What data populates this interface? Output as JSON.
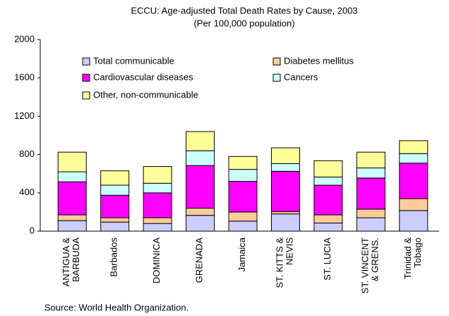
{
  "chart_data": {
    "type": "stacked_bar",
    "title": "ECCU: Age-adjusted Total Death Rates by Cause, 2003",
    "subtitle": "(Per 100,000 population)",
    "source": "Source: World Health Organization.",
    "categories": [
      "ANTIGUA &\nBARBUDA",
      "Barbados",
      "DOMINICA",
      "GRENADA",
      "Jamaica",
      "ST. KITTS &\nNEVIS",
      "ST. LUCIA",
      "ST. VINCENT\n& GRENS.",
      "Trinidad &\nTobago"
    ],
    "series": [
      {
        "name": "Total communicable",
        "color": "#ccccff",
        "values": [
          110,
          95,
          80,
          165,
          105,
          180,
          85,
          140,
          215
        ]
      },
      {
        "name": "Diabetes mellitus",
        "color": "#ffcc99",
        "values": [
          60,
          45,
          60,
          75,
          95,
          25,
          85,
          90,
          125
        ]
      },
      {
        "name": "Cardiovascular diseases",
        "color": "#ff00ff",
        "values": [
          345,
          235,
          260,
          445,
          320,
          420,
          310,
          325,
          370
        ]
      },
      {
        "name": "Cancers",
        "color": "#ccffff",
        "values": [
          105,
          105,
          100,
          155,
          125,
          80,
          85,
          105,
          100
        ]
      },
      {
        "name": "Other, non-communicable",
        "color": "#ffff99",
        "values": [
          205,
          150,
          175,
          200,
          135,
          165,
          170,
          165,
          135
        ]
      }
    ],
    "ylim": [
      0,
      2000
    ],
    "yticks": [
      0,
      400,
      800,
      1200,
      1600,
      2000
    ]
  }
}
